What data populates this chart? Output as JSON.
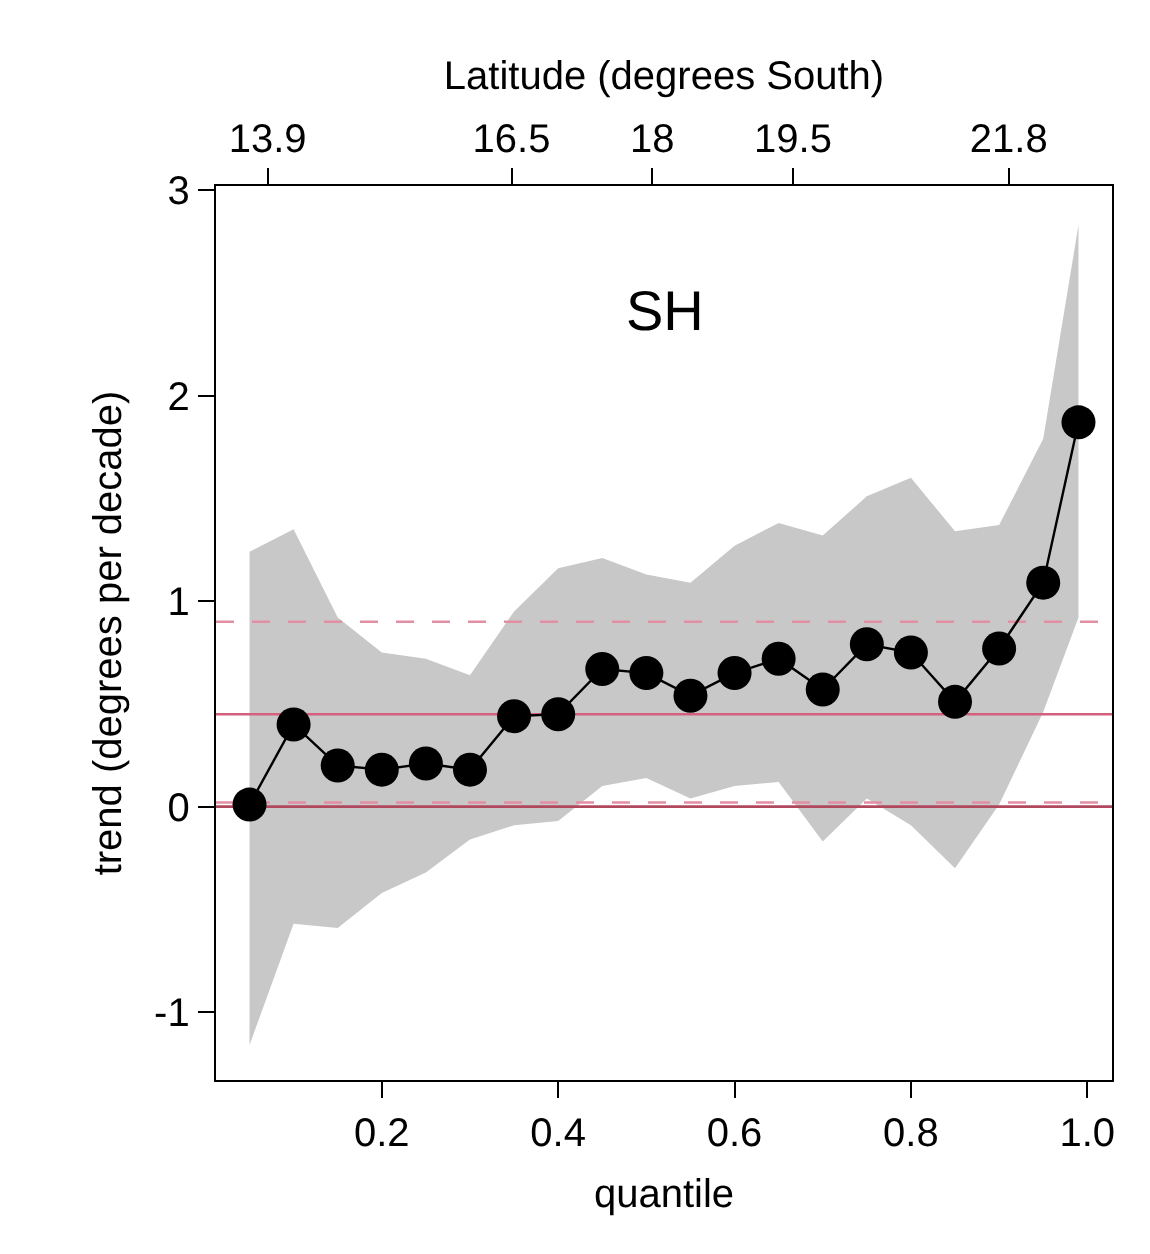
{
  "chart_data": {
    "type": "line",
    "xlabel": "quantile",
    "ylabel": "trend (degrees per decade)",
    "x2label": "Latitude (degrees South)",
    "annotations": [
      "SH"
    ],
    "x": [
      0.05,
      0.1,
      0.15,
      0.2,
      0.25,
      0.3,
      0.35,
      0.4,
      0.45,
      0.5,
      0.55,
      0.6,
      0.65,
      0.7,
      0.75,
      0.8,
      0.85,
      0.9,
      0.95,
      0.99
    ],
    "series": [
      {
        "color": "#000000",
        "values": [
          0.01,
          0.4,
          0.2,
          0.18,
          0.21,
          0.18,
          0.44,
          0.45,
          0.67,
          0.65,
          0.54,
          0.65,
          0.72,
          0.57,
          0.79,
          0.75,
          0.51,
          0.77,
          1.09,
          1.87
        ],
        "lower": [
          -1.16,
          -0.57,
          -0.59,
          -0.42,
          -0.32,
          -0.16,
          -0.09,
          -0.07,
          0.1,
          0.14,
          0.04,
          0.1,
          0.12,
          -0.17,
          0.04,
          -0.09,
          -0.3,
          0.01,
          0.46,
          0.92
        ],
        "upper": [
          1.24,
          1.35,
          0.92,
          0.75,
          0.72,
          0.64,
          0.95,
          1.16,
          1.21,
          1.13,
          1.09,
          1.27,
          1.38,
          1.32,
          1.51,
          1.6,
          1.34,
          1.37,
          1.79,
          2.83
        ]
      }
    ],
    "xlim": [
      0.012,
      1.028
    ],
    "ylim": [
      -1.33,
      3.02
    ],
    "xticks": [
      0.2,
      0.4,
      0.6,
      0.8,
      {
        "value": 1.0,
        "label": "1.0"
      }
    ],
    "yticks": [
      -1,
      0,
      1,
      2,
      3
    ],
    "x2lim": [
      13.35,
      22.9
    ],
    "x2ticks": [
      13.9,
      16.5,
      18,
      19.5,
      21.8
    ],
    "ref_lines": [
      {
        "axis": "y",
        "value": 0.45,
        "label": null,
        "color": "#d4607e",
        "line_style": "solid"
      },
      {
        "axis": "y",
        "value": 0.0,
        "label": null,
        "color": "#b0485e",
        "line_style": "solid"
      },
      {
        "axis": "y",
        "value": 0.9,
        "label": null,
        "color": "#e38fa3",
        "line_style": "dashed"
      },
      {
        "axis": "y",
        "value": 0.02,
        "label": null,
        "color": "#e38fa3",
        "line_style": "dashed"
      }
    ],
    "marker": "circle",
    "line_style": "solid"
  }
}
